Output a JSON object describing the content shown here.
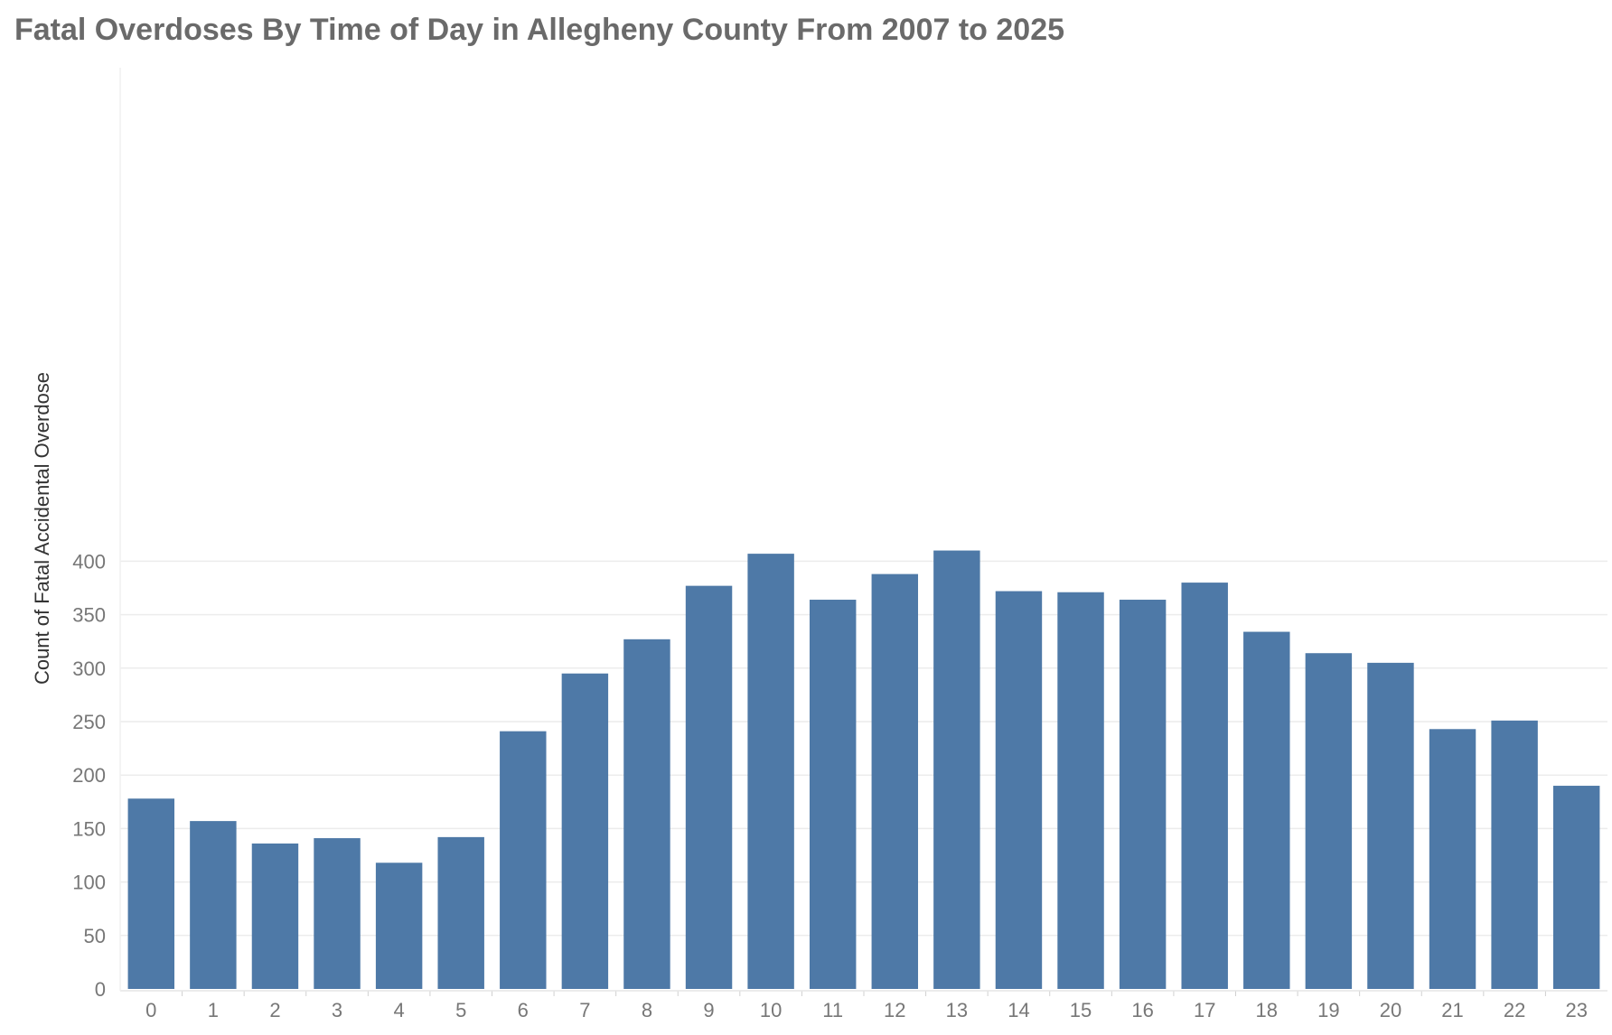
{
  "title": "Fatal Overdoses By Time of Day in Allegheny County From 2007 to 2025",
  "chart_data": {
    "type": "bar",
    "title": "Fatal Overdoses By Time of Day in Allegheny County From 2007 to 2025",
    "xlabel": "",
    "ylabel": "Count of Fatal Accidental Overdose",
    "categories": [
      "0",
      "1",
      "2",
      "3",
      "4",
      "5",
      "6",
      "7",
      "8",
      "9",
      "10",
      "11",
      "12",
      "13",
      "14",
      "15",
      "16",
      "17",
      "18",
      "19",
      "20",
      "21",
      "22",
      "23"
    ],
    "values": [
      178,
      157,
      136,
      141,
      118,
      142,
      241,
      295,
      327,
      377,
      407,
      364,
      388,
      410,
      372,
      371,
      364,
      380,
      334,
      314,
      305,
      243,
      251,
      190
    ],
    "yticks": [
      0,
      50,
      100,
      150,
      200,
      250,
      300,
      350,
      400
    ],
    "ylim": [
      0,
      430
    ],
    "grid": true,
    "bar_color": "#4e79a7"
  }
}
